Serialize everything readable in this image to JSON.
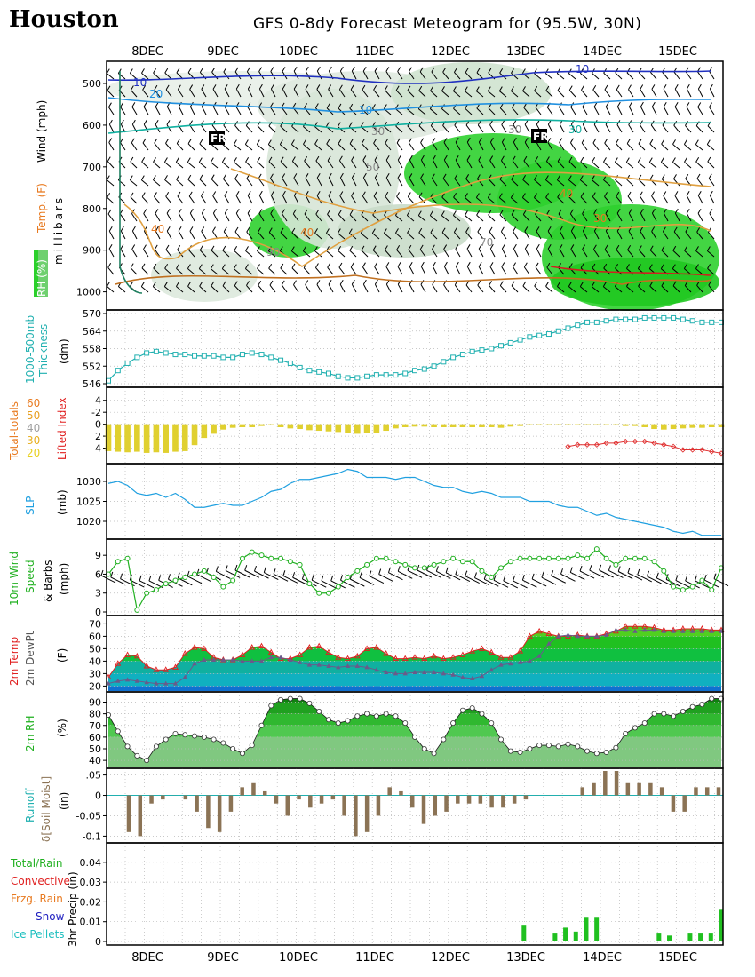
{
  "header": {
    "location": "Houston",
    "title": "GFS 0-8dy Forecast Meteogram for (95.5W, 30N)"
  },
  "dates": [
    "8DEC",
    "9DEC",
    "10DEC",
    "11DEC",
    "12DEC",
    "13DEC",
    "14DEC",
    "15DEC"
  ],
  "labels": {
    "p1": {
      "rh": "RH (%)",
      "temp": "Temp. (F)",
      "wind": "Wind (mph)",
      "mb": "millibars"
    },
    "p2": {
      "a": "1000-500mb",
      "b": "Thickness",
      "u": "(dm)"
    },
    "p3": {
      "tt": "Total-totals",
      "li": "Lifted Index",
      "tt_levels": [
        "60",
        "50",
        "40",
        "30",
        "20"
      ]
    },
    "p4": {
      "a": "SLP",
      "u": "(mb)"
    },
    "p5": {
      "a": "10m Wind",
      "b": "Speed",
      "c": "& Barbs",
      "u": "(mph)"
    },
    "p6": {
      "a": "2m Temp",
      "b": "2m DewPt",
      "u": "(F)"
    },
    "p7": {
      "a": "2m RH",
      "u": "(%)"
    },
    "p8": {
      "a": "Runoff",
      "b": "δ[Soil Moist]",
      "u": "(in)"
    },
    "p9": {
      "y": "3hr Precip (in)",
      "leg": [
        "Total/Rain",
        "Convective",
        "Frzg. Rain",
        "Snow",
        "Ice Pellets"
      ]
    }
  },
  "chart_data": [
    {
      "type": "heatmap",
      "name": "upper-air cross section",
      "yaxis": "millibars",
      "yticks": [
        500,
        600,
        700,
        800,
        900,
        1000
      ],
      "contour_labels": [
        "10",
        "20",
        "30",
        "40",
        "50",
        "70",
        "80",
        "90",
        "FR"
      ]
    },
    {
      "type": "line",
      "yticks": [
        546,
        552,
        558,
        564,
        570
      ],
      "ylim": [
        546,
        570
      ],
      "x_days": [
        0,
        0.125,
        0.25,
        0.375,
        0.5,
        0.625,
        0.75,
        0.875,
        1,
        1.125,
        1.25,
        1.375,
        1.5,
        1.625,
        1.75,
        1.875,
        2,
        2.125,
        2.25,
        2.375,
        2.5,
        2.625,
        2.75,
        2.875,
        3,
        3.125,
        3.25,
        3.375,
        3.5,
        3.625,
        3.75,
        3.875,
        4,
        4.125,
        4.25,
        4.375,
        4.5,
        4.625,
        4.75,
        4.875,
        5,
        5.125,
        5.25,
        5.375,
        5.5,
        5.625,
        5.75,
        5.875,
        6,
        6.125,
        6.25,
        6.375,
        6.5,
        6.625,
        6.75,
        6.875,
        7,
        7.125,
        7.25,
        7.375,
        7.5,
        7.625,
        7.75,
        7.875,
        8
      ],
      "values": [
        547,
        550.5,
        553,
        555,
        556.5,
        557,
        556.5,
        556,
        556,
        555.5,
        555.5,
        555.5,
        555,
        555,
        556,
        556.5,
        556,
        555,
        554,
        553,
        551.5,
        550.5,
        550,
        549.5,
        548.5,
        548,
        548,
        548.5,
        549,
        549,
        549,
        549.5,
        550.5,
        551,
        552,
        553.5,
        555,
        556,
        557,
        557.5,
        558,
        559,
        560,
        561,
        562,
        562.5,
        563,
        564,
        565,
        566,
        567,
        567,
        567.5,
        568,
        568,
        568,
        568.5,
        568.5,
        568.5,
        568.5,
        568,
        567.5,
        567,
        567,
        567
      ]
    },
    {
      "type": "bar",
      "name": "Lifted Index",
      "yticks": [
        -4,
        -2,
        0,
        2,
        4
      ],
      "ylim": [
        -5,
        6
      ],
      "values": [
        4.5,
        4.6,
        4.7,
        4.6,
        4.8,
        4.7,
        4.8,
        4.6,
        4.5,
        3.5,
        2.3,
        1.6,
        0.9,
        0.6,
        0.5,
        0.5,
        0.3,
        0.2,
        0.5,
        0.7,
        0.8,
        1.0,
        1.1,
        1.2,
        1.3,
        1.4,
        1.6,
        1.5,
        1.4,
        1.1,
        0.7,
        0.5,
        0.4,
        0.4,
        0.5,
        0.5,
        0.5,
        0.5,
        0.5,
        0.5,
        0.5,
        0.6,
        0.4,
        0.3,
        0.2,
        0.2,
        0.2,
        0.2,
        0.1,
        0.1,
        0.1,
        0.1,
        0.1,
        0.2,
        0.3,
        0.3,
        0.5,
        0.8,
        0.9,
        0.8,
        0.7,
        0.6,
        0.6,
        0.5,
        0.5
      ],
      "total_totals": [
        null,
        null,
        null,
        null,
        null,
        null,
        null,
        null,
        null,
        null,
        null,
        null,
        null,
        null,
        null,
        null,
        null,
        null,
        null,
        null,
        null,
        null,
        null,
        null,
        null,
        null,
        null,
        null,
        null,
        null,
        null,
        null,
        null,
        null,
        null,
        null,
        null,
        null,
        null,
        null,
        null,
        null,
        null,
        null,
        null,
        null,
        null,
        null,
        28,
        29,
        29,
        29,
        30,
        30,
        31,
        31,
        31,
        30,
        29,
        28,
        26,
        26,
        26,
        25,
        24
      ]
    },
    {
      "type": "line",
      "name": "SLP",
      "yticks": [
        1020,
        1025,
        1030
      ],
      "ylim": [
        1016,
        1034
      ],
      "values": [
        1029.5,
        1030,
        1029,
        1027,
        1026.5,
        1027,
        1026,
        1027,
        1025.5,
        1023.5,
        1023.5,
        1024,
        1024.5,
        1024,
        1024,
        1025,
        1026,
        1027.5,
        1028,
        1029.5,
        1030.5,
        1030.5,
        1031,
        1031.5,
        1032,
        1033,
        1032.5,
        1031,
        1031,
        1031,
        1030.5,
        1031,
        1031,
        1030,
        1029,
        1028.5,
        1028.5,
        1027.5,
        1027,
        1027.5,
        1027,
        1026,
        1026,
        1026,
        1025,
        1025,
        1025,
        1024,
        1023.5,
        1023.5,
        1022.5,
        1021.5,
        1022,
        1021,
        1020.5,
        1020,
        1019.5,
        1019,
        1018.5,
        1017.5,
        1017,
        1017.5,
        1016.5,
        1016.5,
        1016.5
      ]
    },
    {
      "type": "line",
      "name": "10m Wind Speed",
      "yticks": [
        0,
        3,
        6,
        9
      ],
      "ylim": [
        0,
        11
      ],
      "values": [
        6,
        8,
        8.5,
        0.3,
        3,
        3.5,
        4.5,
        5,
        5.5,
        6,
        6.5,
        5.5,
        4,
        5,
        8.5,
        9.5,
        9,
        8.5,
        8.5,
        8,
        7.5,
        4.5,
        3,
        3,
        4,
        5.5,
        6.5,
        7.5,
        8.5,
        8.5,
        8,
        7.5,
        7,
        7,
        7.5,
        8,
        8.5,
        8,
        8,
        6.5,
        5.5,
        7,
        8,
        8.5,
        8.5,
        8.5,
        8.5,
        8.5,
        8.5,
        9,
        8.5,
        10,
        8.5,
        7.5,
        8.5,
        8.5,
        8.5,
        8,
        6.5,
        4,
        3.5,
        4,
        5,
        3.5,
        7
      ]
    },
    {
      "type": "area",
      "name": "2m Temp / DewPt",
      "yticks": [
        20,
        30,
        40,
        50,
        60,
        70
      ],
      "ylim": [
        16,
        76
      ],
      "series": [
        {
          "name": "2m Temp",
          "values": [
            27,
            38,
            45,
            44,
            36,
            33,
            33,
            35,
            46,
            51,
            50,
            43,
            41,
            41,
            45,
            51,
            52,
            47,
            42,
            42,
            45,
            51,
            52,
            47,
            43,
            42,
            44,
            50,
            51,
            46,
            42,
            42,
            43,
            42,
            44,
            42,
            43,
            45,
            48,
            50,
            47,
            43,
            43,
            48,
            60,
            64,
            62,
            60,
            60,
            61,
            60,
            60,
            62,
            64,
            68,
            68,
            68,
            67,
            65,
            65,
            66,
            66,
            66,
            65,
            65
          ]
        },
        {
          "name": "2m DewPt",
          "values": [
            22,
            24,
            25,
            24,
            23,
            22,
            22,
            22,
            27,
            38,
            41,
            41,
            41,
            41,
            40,
            40,
            40,
            43,
            43,
            41,
            39,
            37,
            37,
            36,
            35,
            36,
            36,
            35,
            33,
            31,
            30,
            30,
            31,
            31,
            31,
            30,
            29,
            27,
            26,
            28,
            33,
            37,
            38,
            39,
            40,
            44,
            54,
            60,
            61,
            60,
            60,
            60,
            61,
            65,
            65,
            64,
            65,
            65,
            64,
            64,
            64,
            64,
            64,
            64,
            64
          ]
        }
      ]
    },
    {
      "type": "area",
      "name": "2m RH",
      "yticks": [
        40,
        50,
        60,
        70,
        80,
        90
      ],
      "ylim": [
        34,
        98
      ],
      "values": [
        79,
        65,
        52,
        44,
        40,
        52,
        58,
        63,
        62,
        61,
        60,
        58,
        55,
        50,
        46,
        53,
        70,
        87,
        92,
        93,
        93,
        89,
        82,
        75,
        72,
        74,
        78,
        80,
        78,
        80,
        78,
        72,
        60,
        50,
        46,
        58,
        72,
        83,
        85,
        80,
        72,
        58,
        48,
        47,
        50,
        53,
        53,
        52,
        54,
        52,
        48,
        46,
        47,
        51,
        63,
        68,
        72,
        80,
        80,
        78,
        82,
        86,
        88,
        93,
        93
      ]
    },
    {
      "type": "bar",
      "name": "Runoff / d[Soil Moist]",
      "yticks": [
        -0.1,
        -0.05,
        0,
        0.05
      ],
      "ylim": [
        -0.11,
        0.06
      ],
      "values": [
        -0.09,
        -0.1,
        -0.02,
        -0.01,
        0,
        -0.01,
        -0.04,
        -0.08,
        -0.09,
        -0.04,
        0.02,
        0.03,
        0.01,
        -0.02,
        -0.05,
        -0.01,
        -0.03,
        -0.02,
        -0.01,
        -0.05,
        -0.1,
        -0.09,
        -0.05,
        0.02,
        0.01,
        -0.03,
        -0.07,
        -0.05,
        -0.04,
        -0.02,
        -0.02,
        -0.02,
        -0.03,
        -0.03,
        -0.02,
        -0.01,
        0,
        0,
        0,
        0,
        0.02,
        0.03,
        0.06,
        0.06,
        0.03,
        0.03,
        0.03,
        0.02,
        -0.04,
        -0.04,
        0.02,
        0.02,
        0.02
      ]
    },
    {
      "type": "bar",
      "name": "3hr Precip",
      "yticks": [
        0,
        0.01,
        0.02,
        0.03,
        0.04
      ],
      "ylim": [
        0,
        0.048
      ],
      "values": [
        0,
        0,
        0,
        0,
        0,
        0,
        0,
        0,
        0,
        0,
        0,
        0,
        0,
        0,
        0,
        0,
        0,
        0,
        0,
        0,
        0,
        0,
        0,
        0,
        0,
        0,
        0,
        0,
        0,
        0,
        0,
        0,
        0,
        0,
        0,
        0,
        0,
        0,
        0,
        0,
        0.008,
        0,
        0,
        0.004,
        0.007,
        0.005,
        0.012,
        0.012,
        0,
        0,
        0,
        0,
        0,
        0.004,
        0.003,
        0,
        0.004,
        0.004,
        0.004,
        0.016
      ]
    }
  ],
  "colors": {
    "thickness": "#20b0b0",
    "slp": "#20a0e0",
    "wind": "#20b020",
    "temp": "#e02020",
    "dew": "#6a5a8a",
    "li_bar": "#e0d030",
    "precip": "#20c020",
    "soil": "#8b7355"
  }
}
